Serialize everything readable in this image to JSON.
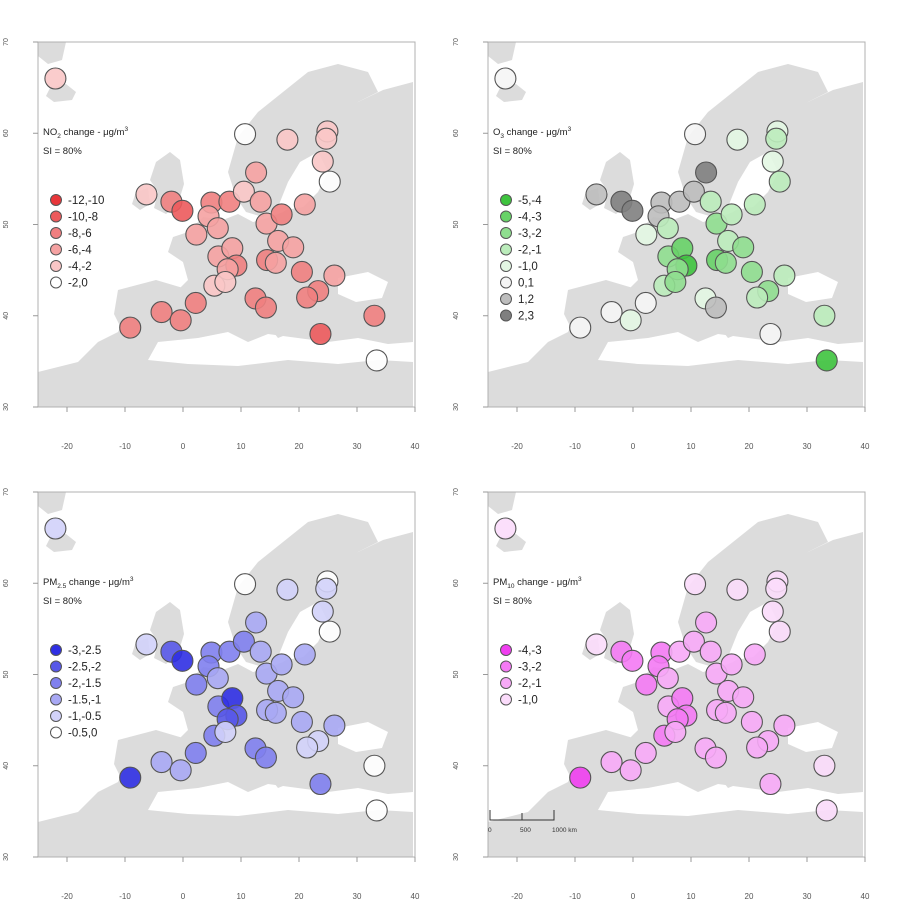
{
  "axes": {
    "lon_ticks": [
      "-20",
      "-10",
      "0",
      "10",
      "20",
      "30",
      "40"
    ],
    "lat_ticks": [
      "30",
      "40",
      "50",
      "60",
      "70"
    ],
    "xlim": [
      -25,
      40
    ],
    "ylim": [
      30,
      70
    ]
  },
  "stations": [
    {
      "lon": -22,
      "lat": 66
    },
    {
      "lon": 10.7,
      "lat": 59.9
    },
    {
      "lon": 18,
      "lat": 59.3
    },
    {
      "lon": 24.9,
      "lat": 60.2
    },
    {
      "lon": 24.7,
      "lat": 59.4
    },
    {
      "lon": 24.1,
      "lat": 56.9
    },
    {
      "lon": 25.3,
      "lat": 54.7
    },
    {
      "lon": 12.6,
      "lat": 55.7
    },
    {
      "lon": -6.3,
      "lat": 53.3
    },
    {
      "lon": -2,
      "lat": 52.5
    },
    {
      "lon": -0.1,
      "lat": 51.5
    },
    {
      "lon": 4.9,
      "lat": 52.4
    },
    {
      "lon": 4.4,
      "lat": 50.9
    },
    {
      "lon": 6,
      "lat": 49.6
    },
    {
      "lon": 8,
      "lat": 52.5
    },
    {
      "lon": 10.5,
      "lat": 53.6
    },
    {
      "lon": 13.4,
      "lat": 52.5
    },
    {
      "lon": 2.3,
      "lat": 48.9
    },
    {
      "lon": 6.1,
      "lat": 46.5
    },
    {
      "lon": 8.5,
      "lat": 47.4
    },
    {
      "lon": 14.4,
      "lat": 50.1
    },
    {
      "lon": 16.4,
      "lat": 48.2
    },
    {
      "lon": 19,
      "lat": 47.5
    },
    {
      "lon": 21,
      "lat": 52.2
    },
    {
      "lon": 17,
      "lat": 51.1
    },
    {
      "lon": 14.5,
      "lat": 46.1
    },
    {
      "lon": 16,
      "lat": 45.8
    },
    {
      "lon": 20.5,
      "lat": 44.8
    },
    {
      "lon": 26.1,
      "lat": 44.4
    },
    {
      "lon": 23.3,
      "lat": 42.7
    },
    {
      "lon": 21.4,
      "lat": 42
    },
    {
      "lon": 12.5,
      "lat": 41.9
    },
    {
      "lon": 14.3,
      "lat": 40.9
    },
    {
      "lon": 9.2,
      "lat": 45.5
    },
    {
      "lon": 7.7,
      "lat": 45.1
    },
    {
      "lon": 5.4,
      "lat": 43.3
    },
    {
      "lon": 7.3,
      "lat": 43.7
    },
    {
      "lon": -3.7,
      "lat": 40.4
    },
    {
      "lon": -9.1,
      "lat": 38.7
    },
    {
      "lon": -0.4,
      "lat": 39.5
    },
    {
      "lon": 2.2,
      "lat": 41.4
    },
    {
      "lon": 23.7,
      "lat": 38
    },
    {
      "lon": 33,
      "lat": 40
    },
    {
      "lon": 33.4,
      "lat": 35.1
    }
  ],
  "panels": [
    {
      "legend_title_main": "NO",
      "legend_title_sub": "2",
      "legend_title_rest": " change - μg/m",
      "legend_title_sup": "3",
      "si_label": "SI = 80%",
      "legend_items": [
        {
          "label": "-12,-10",
          "color": "#e8363a"
        },
        {
          "label": "-10,-8",
          "color": "#ec5a5c"
        },
        {
          "label": "-8,-6",
          "color": "#f07f80"
        },
        {
          "label": "-6,-4",
          "color": "#f5a2a2"
        },
        {
          "label": "-4,-2",
          "color": "#f9c6c6"
        },
        {
          "label": "-2,0",
          "color": "#ffffff"
        }
      ],
      "station_classes": [
        4,
        5,
        4,
        4,
        4,
        4,
        5,
        3,
        4,
        2,
        1,
        2,
        3,
        3,
        2,
        4,
        3,
        3,
        3,
        3,
        3,
        3,
        3,
        3,
        2,
        2,
        3,
        2,
        3,
        2,
        2,
        2,
        2,
        2,
        3,
        4,
        4,
        2,
        2,
        2,
        2,
        1,
        2,
        5
      ]
    },
    {
      "legend_title_main": "O",
      "legend_title_sub": "3",
      "legend_title_rest": " change - μg/m",
      "legend_title_sup": "3",
      "si_label": "SI = 80%",
      "legend_items": [
        {
          "label": "-5,-4",
          "color": "#3ec33e"
        },
        {
          "label": "-4,-3",
          "color": "#67d267"
        },
        {
          "label": "-3,-2",
          "color": "#8fde8f"
        },
        {
          "label": "-2,-1",
          "color": "#bbecbb"
        },
        {
          "label": "-1,0",
          "color": "#e3f7e3"
        },
        {
          "label": "0,1",
          "color": "#f5f5f5"
        },
        {
          "label": "1,2",
          "color": "#bdbdbd"
        },
        {
          "label": "2,3",
          "color": "#7f7f7f"
        }
      ],
      "station_classes": [
        5,
        5,
        4,
        4,
        3,
        4,
        3,
        7,
        6,
        7,
        7,
        6,
        6,
        3,
        6,
        6,
        3,
        4,
        2,
        1,
        2,
        3,
        2,
        3,
        3,
        1,
        2,
        2,
        3,
        2,
        3,
        4,
        6,
        0,
        2,
        3,
        2,
        5,
        5,
        4,
        5,
        5,
        3,
        0
      ]
    },
    {
      "legend_title_main": "PM",
      "legend_title_sub": "2.5",
      "legend_title_rest": " change - μg/m",
      "legend_title_sup": "3",
      "si_label": "SI = 80%",
      "legend_items": [
        {
          "label": "-3,-2.5",
          "color": "#2f2fe3"
        },
        {
          "label": "-2.5,-2",
          "color": "#5858e8"
        },
        {
          "label": "-2,-1.5",
          "color": "#8080ee"
        },
        {
          "label": "-1.5,-1",
          "color": "#a8a8f4"
        },
        {
          "label": "-1,-0.5",
          "color": "#d2d2f9"
        },
        {
          "label": "-0.5,0",
          "color": "#ffffff"
        }
      ],
      "station_classes": [
        4,
        5,
        4,
        5,
        4,
        4,
        5,
        3,
        4,
        1,
        0,
        2,
        2,
        3,
        2,
        2,
        3,
        2,
        2,
        0,
        3,
        3,
        3,
        3,
        3,
        3,
        3,
        3,
        3,
        4,
        4,
        2,
        2,
        1,
        1,
        2,
        4,
        3,
        0,
        3,
        2,
        2,
        5,
        5
      ]
    },
    {
      "legend_title_main": "PM",
      "legend_title_sub": "10",
      "legend_title_rest": " change - μg/m",
      "legend_title_sup": "3",
      "si_label": "SI = 80%",
      "legend_items": [
        {
          "label": "-4,-3",
          "color": "#f03ef0"
        },
        {
          "label": "-3,-2",
          "color": "#f47af4"
        },
        {
          "label": "-2,-1",
          "color": "#f7aaf7"
        },
        {
          "label": "-1,0",
          "color": "#fbdcfb"
        }
      ],
      "station_classes": [
        3,
        3,
        3,
        3,
        3,
        3,
        3,
        2,
        3,
        1,
        1,
        1,
        1,
        2,
        2,
        2,
        2,
        1,
        2,
        1,
        2,
        2,
        2,
        2,
        2,
        2,
        2,
        2,
        2,
        2,
        2,
        2,
        2,
        1,
        1,
        1,
        2,
        2,
        0,
        2,
        2,
        2,
        3,
        3
      ]
    }
  ],
  "scalebar": {
    "labels": [
      "0",
      "500",
      "1000 km"
    ]
  }
}
